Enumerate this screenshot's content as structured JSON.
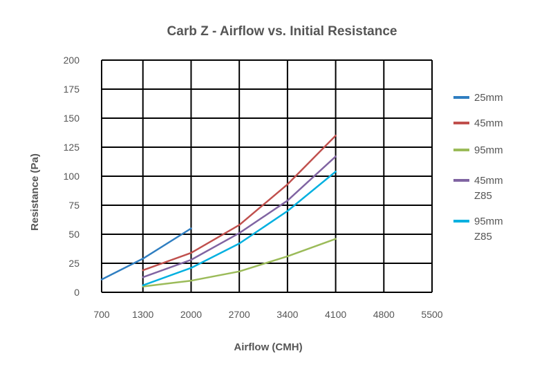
{
  "chart_data": {
    "type": "line",
    "title": "Carb Z - Airflow vs. Initial Resistance",
    "xlabel": "Airflow (CMH)",
    "ylabel": "Resistance (Pa)",
    "xlim": [
      700,
      5500
    ],
    "ylim": [
      0,
      200
    ],
    "x_ticks": [
      "700",
      "1300",
      "2000",
      "2700",
      "3400",
      "4100",
      "4800",
      "5500"
    ],
    "y_ticks": [
      "0",
      "25",
      "50",
      "75",
      "100",
      "125",
      "150",
      "175",
      "200"
    ],
    "grid": true,
    "legend_position": "right",
    "series": [
      {
        "name": "25mm",
        "label_lines": [
          "25mm"
        ],
        "color": "#2f7ec1",
        "x": [
          700,
          1300,
          2000
        ],
        "y": [
          11,
          29,
          55
        ]
      },
      {
        "name": "45mm",
        "label_lines": [
          "45mm"
        ],
        "color": "#c0504d",
        "x": [
          1300,
          2000,
          2700,
          3400,
          4100
        ],
        "y": [
          19,
          34,
          58,
          93,
          135
        ]
      },
      {
        "name": "95mm",
        "label_lines": [
          "95mm"
        ],
        "color": "#9bbb59",
        "x": [
          1300,
          2000,
          2700,
          3400,
          4100
        ],
        "y": [
          5,
          10,
          18,
          31,
          46
        ]
      },
      {
        "name": "45mm Z85",
        "label_lines": [
          "45mm",
          "Z85"
        ],
        "color": "#8064a2",
        "x": [
          1300,
          2000,
          2700,
          3400,
          4100
        ],
        "y": [
          13,
          28,
          51,
          79,
          117
        ]
      },
      {
        "name": "95mm Z85",
        "label_lines": [
          "95mm",
          "Z85"
        ],
        "color": "#00b0e0",
        "x": [
          1300,
          2000,
          2700,
          3400,
          4100
        ],
        "y": [
          6,
          21,
          42,
          70,
          104
        ]
      }
    ]
  }
}
